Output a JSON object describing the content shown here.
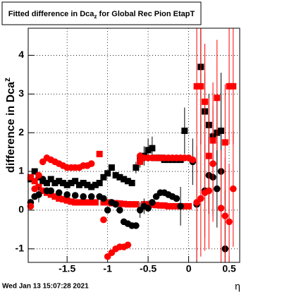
{
  "chart_data": {
    "type": "scatter",
    "title": [
      "Fitted difference in Dca",
      "z",
      " for Global Rec Pion EtapT"
    ],
    "y_label": [
      "difference in Dca",
      "z"
    ],
    "x_label": "η",
    "footer": "Wed Jan 13 15:07:28 2021",
    "xlim": [
      -1.98,
      0.63
    ],
    "ylim": [
      -1.35,
      4.7
    ],
    "xticks": [
      -1.5,
      -1,
      -0.5,
      0,
      0.5
    ],
    "yticks": [
      -1,
      0,
      1,
      2,
      3,
      4
    ],
    "grid": true,
    "series": [
      {
        "marker": "square",
        "color": "#000000",
        "x": [
          -1.95,
          -1.9,
          -1.85,
          -1.8,
          -1.75,
          -1.7,
          -1.65,
          -1.6,
          -1.55,
          -1.5,
          -1.45,
          -1.4,
          -1.35,
          -1.3,
          -1.25,
          -1.2,
          -1.15,
          -1.1,
          -1.05,
          -1.0,
          -0.95,
          -0.9,
          -0.85,
          -0.8,
          -0.75,
          -0.7,
          -0.65,
          -0.6,
          -0.55,
          -0.5,
          -0.45,
          -0.4,
          -0.35,
          -0.3,
          -0.25,
          -0.2,
          -0.15,
          -0.1,
          -0.05,
          0.15,
          0.2,
          0.25,
          0.3,
          0.35,
          0.4
        ],
        "values": [
          0.8,
          1.0,
          0.85,
          0.75,
          0.7,
          0.8,
          0.7,
          0.75,
          0.7,
          0.65,
          0.7,
          0.75,
          0.65,
          0.7,
          0.65,
          0.6,
          0.65,
          0.7,
          0.85,
          0.95,
          1.1,
          0.9,
          0.85,
          0.8,
          0.75,
          0.7,
          1.1,
          1.3,
          1.4,
          1.55,
          1.6,
          1.35,
          1.35,
          1.3,
          1.3,
          1.3,
          1.3,
          1.3,
          2.05,
          3.7,
          2.55,
          2.2,
          1.9,
          2.0,
          2.05
        ],
        "errors": [
          null,
          null,
          null,
          null,
          null,
          null,
          null,
          null,
          null,
          null,
          null,
          null,
          null,
          null,
          null,
          null,
          null,
          null,
          null,
          null,
          null,
          null,
          null,
          null,
          null,
          null,
          0.15,
          0.2,
          0.25,
          0.3,
          0.3,
          null,
          null,
          null,
          null,
          null,
          null,
          null,
          0.6,
          2.0,
          1.0,
          0.8,
          0.7,
          1.0,
          1.5
        ]
      },
      {
        "marker": "square",
        "color": "#ff0000",
        "x": [
          -1.95,
          -1.9,
          -1.85,
          -1.8,
          -1.75,
          -1.7,
          -1.65,
          -1.6,
          -1.55,
          -1.5,
          -1.45,
          -1.4,
          -1.35,
          -1.3,
          -1.25,
          -1.2,
          -1.15,
          -1.1,
          -1.05,
          -1.0,
          -0.95,
          -0.9,
          -0.85,
          -0.8,
          -0.75,
          -0.7,
          -0.65,
          -0.6,
          -0.55,
          -0.5,
          -0.45,
          -0.4,
          -0.35,
          -0.3,
          -0.25,
          -0.2,
          -0.15,
          -0.1,
          -0.05,
          0.0,
          0.1,
          0.15,
          0.2,
          0.25,
          0.3,
          0.35,
          0.45,
          0.5,
          0.55
        ],
        "values": [
          0.85,
          0.75,
          0.6,
          0.5,
          0.45,
          0.4,
          0.35,
          0.3,
          0.28,
          0.25,
          0.22,
          0.2,
          0.2,
          0.2,
          0.2,
          0.2,
          0.2,
          1.45,
          0.2,
          0.2,
          0.18,
          0.18,
          0.17,
          0.16,
          0.15,
          0.15,
          0.15,
          1.25,
          0.15,
          0.15,
          0.14,
          0.13,
          0.12,
          0.12,
          0.1,
          0.1,
          0.1,
          0.1,
          0.1,
          0.1,
          3.2,
          3.2,
          2.8,
          1.4,
          1.8,
          2.9,
          1.75,
          3.2,
          3.2
        ],
        "errors": [
          null,
          null,
          null,
          null,
          null,
          null,
          null,
          null,
          null,
          null,
          null,
          null,
          null,
          null,
          null,
          null,
          null,
          null,
          null,
          null,
          null,
          null,
          null,
          null,
          null,
          null,
          null,
          null,
          null,
          null,
          null,
          null,
          null,
          null,
          null,
          null,
          null,
          null,
          null,
          null,
          1.5,
          1.5,
          1.5,
          1.5,
          1.5,
          1.5,
          1.5,
          1.5,
          1.5
        ]
      },
      {
        "marker": "circle",
        "color": "#000000",
        "x": [
          -1.95,
          -1.9,
          -1.85,
          -1.8,
          -1.75,
          -1.7,
          -1.6,
          -1.5,
          -1.4,
          -1.3,
          -1.2,
          -1.1,
          -1.05,
          -1.0,
          -0.95,
          -0.9,
          -0.85,
          -0.8,
          -0.75,
          -0.7,
          -0.65,
          -0.6,
          -0.55,
          -0.5,
          -0.45,
          -0.4,
          -0.35,
          -0.3,
          -0.25,
          -0.2,
          -0.15,
          -0.1,
          0.05,
          0.1,
          0.2,
          0.25,
          0.3,
          0.35,
          0.4,
          0.45
        ],
        "values": [
          0.2,
          0.35,
          0.4,
          0.8,
          0.5,
          0.5,
          0.45,
          0.4,
          0.38,
          0.35,
          0.35,
          0.35,
          0.3,
          0.0,
          0.2,
          0.15,
          0.0,
          -0.3,
          -0.35,
          -0.4,
          -0.4,
          0.0,
          0.1,
          0.05,
          0.2,
          0.35,
          0.45,
          0.45,
          0.4,
          0.35,
          0.3,
          0.1,
          1.25,
          0.15,
          0.5,
          0.9,
          0.85,
          0.55,
          1.0,
          -1.0
        ],
        "errors": [
          null,
          null,
          0.2,
          null,
          null,
          null,
          null,
          null,
          null,
          null,
          null,
          null,
          null,
          null,
          null,
          null,
          null,
          null,
          null,
          null,
          null,
          0.2,
          0.2,
          null,
          null,
          null,
          null,
          null,
          null,
          null,
          null,
          0.5,
          0.6,
          1.5,
          1.2,
          1.0,
          1.0,
          1.0,
          1.2,
          1.5
        ]
      },
      {
        "marker": "circle",
        "color": "#ff0000",
        "x": [
          -1.95,
          -1.9,
          -1.85,
          -1.8,
          -1.75,
          -1.7,
          -1.65,
          -1.6,
          -1.55,
          -1.5,
          -1.45,
          -1.4,
          -1.35,
          -1.3,
          -1.25,
          -1.2,
          -1.05,
          -1.0,
          -0.95,
          -0.9,
          -0.85,
          -0.8,
          -0.75,
          -0.6,
          -0.55,
          -0.5,
          -0.45,
          -0.4,
          -0.35,
          -0.3,
          -0.25,
          -0.2,
          -0.15,
          -0.1,
          -0.05,
          0.0,
          0.05,
          0.1,
          0.15,
          0.2,
          0.25,
          0.3,
          0.4,
          0.45,
          0.5,
          0.55
        ],
        "values": [
          0.1,
          0.55,
          0.9,
          1.25,
          1.35,
          1.3,
          1.25,
          1.2,
          1.15,
          1.1,
          1.1,
          1.1,
          1.1,
          1.15,
          1.15,
          1.2,
          -0.25,
          -1.2,
          -1.1,
          -1.0,
          -0.95,
          -0.95,
          -0.9,
          1.4,
          1.35,
          1.35,
          1.35,
          1.35,
          1.35,
          1.35,
          1.35,
          1.35,
          1.35,
          1.35,
          1.35,
          1.35,
          1.3,
          0.2,
          0.3,
          0.45,
          0.5,
          1.2,
          0.05,
          -0.15,
          -0.3,
          0.55
        ],
        "errors": [
          null,
          null,
          null,
          null,
          null,
          null,
          null,
          null,
          null,
          null,
          null,
          null,
          null,
          null,
          null,
          null,
          null,
          null,
          null,
          null,
          null,
          null,
          null,
          null,
          null,
          null,
          null,
          null,
          null,
          null,
          null,
          null,
          null,
          null,
          null,
          null,
          null,
          1.5,
          1.5,
          1.5,
          1.5,
          1.5,
          1.5,
          1.5,
          1.5,
          1.5
        ]
      }
    ]
  }
}
